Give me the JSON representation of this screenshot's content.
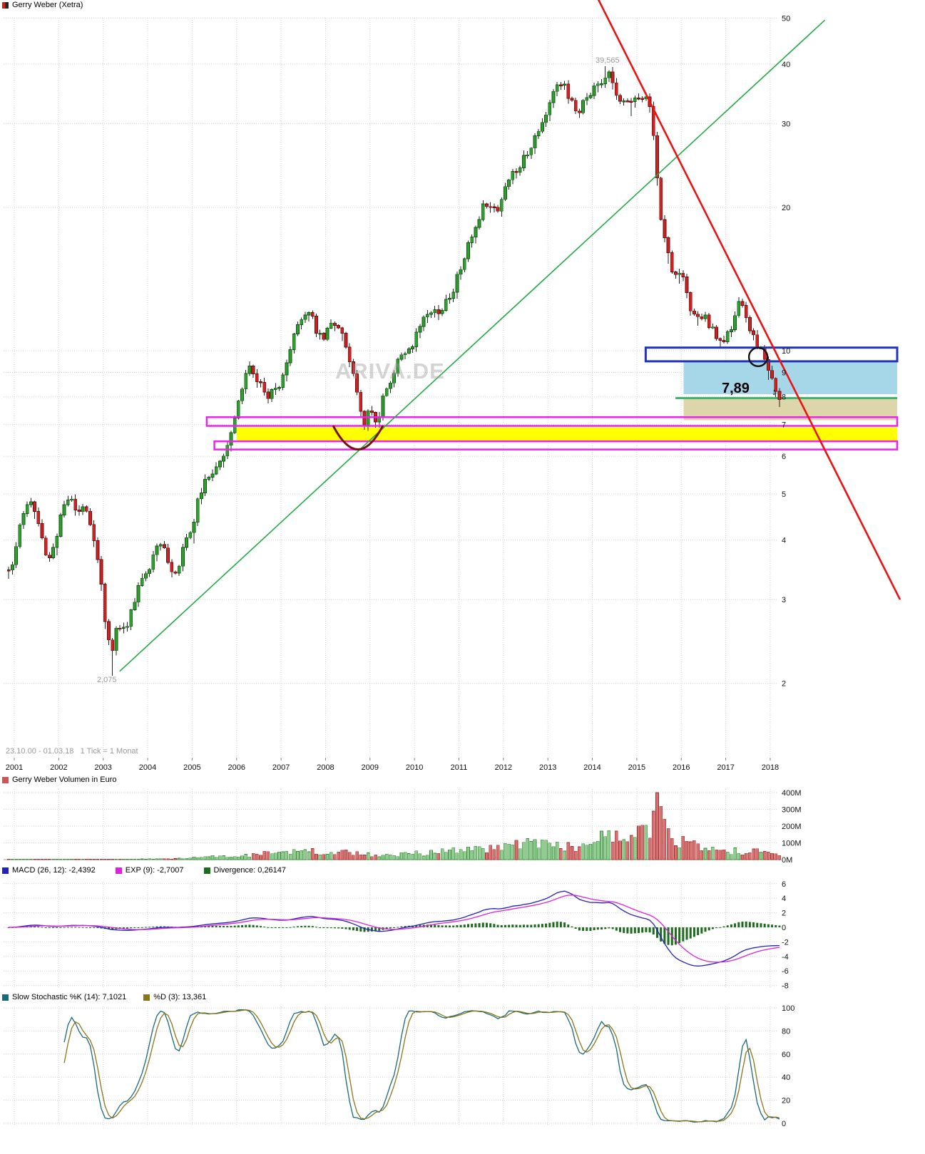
{
  "window": {
    "title_legend": "Gerry Weber (Xetra)"
  },
  "status_bar": {
    "period_label": "23.10.00 - 01.03.18",
    "tick_label": "1 Tick = 1 Monat"
  },
  "watermark": "ARIVA.DE",
  "chart_data": {
    "type": "candlestick",
    "title": "Gerry Weber (Xetra)",
    "scale": "log",
    "seed": 11,
    "x_start": 2000.875,
    "x_end": 2018.17,
    "x_tick_labels": [
      "2001",
      "2002",
      "2003",
      "2004",
      "2005",
      "2006",
      "2007",
      "2008",
      "2009",
      "2010",
      "2011",
      "2012",
      "2013",
      "2014",
      "2015",
      "2016",
      "2017",
      "2018"
    ],
    "grid_color": "#d2d2d2",
    "price_panel": {
      "y_ticks": [
        50,
        40,
        30,
        20,
        10,
        9,
        8,
        7,
        6,
        5,
        4,
        3,
        2
      ],
      "candle_colors": {
        "up": "#2f9e2f",
        "up_border": "#0f5a0f",
        "down": "#cc2222",
        "down_border": "#6e0e0e",
        "wick": "#222222"
      },
      "monthly_close_anchors": [
        [
          2000.87,
          3.45
        ],
        [
          2001.0,
          3.7
        ],
        [
          2001.17,
          4.5
        ],
        [
          2001.33,
          4.8
        ],
        [
          2001.5,
          4.6
        ],
        [
          2001.62,
          4.05
        ],
        [
          2001.75,
          3.5
        ],
        [
          2001.92,
          4.0
        ],
        [
          2002.08,
          4.7
        ],
        [
          2002.25,
          4.95
        ],
        [
          2002.42,
          4.55
        ],
        [
          2002.58,
          4.8
        ],
        [
          2002.75,
          4.15
        ],
        [
          2002.92,
          3.45
        ],
        [
          2003.08,
          2.55
        ],
        [
          2003.17,
          2.3
        ],
        [
          2003.33,
          2.7
        ],
        [
          2003.5,
          2.55
        ],
        [
          2003.67,
          2.95
        ],
        [
          2003.83,
          3.2
        ],
        [
          2004.0,
          3.45
        ],
        [
          2004.17,
          3.85
        ],
        [
          2004.33,
          3.95
        ],
        [
          2004.5,
          3.55
        ],
        [
          2004.62,
          3.35
        ],
        [
          2004.83,
          3.9
        ],
        [
          2005.0,
          4.3
        ],
        [
          2005.17,
          5.0
        ],
        [
          2005.33,
          5.35
        ],
        [
          2005.5,
          5.7
        ],
        [
          2005.67,
          6.0
        ],
        [
          2005.83,
          6.45
        ],
        [
          2006.0,
          7.5
        ],
        [
          2006.17,
          8.8
        ],
        [
          2006.33,
          9.3
        ],
        [
          2006.5,
          8.6
        ],
        [
          2006.67,
          7.9
        ],
        [
          2006.83,
          8.3
        ],
        [
          2007.0,
          8.6
        ],
        [
          2007.17,
          9.6
        ],
        [
          2007.33,
          11.0
        ],
        [
          2007.5,
          12.0
        ],
        [
          2007.62,
          12.3
        ],
        [
          2007.75,
          11.3
        ],
        [
          2007.92,
          10.6
        ],
        [
          2008.08,
          11.1
        ],
        [
          2008.25,
          11.7
        ],
        [
          2008.42,
          10.6
        ],
        [
          2008.58,
          9.2
        ],
        [
          2008.75,
          7.8
        ],
        [
          2008.87,
          6.9
        ],
        [
          2009.0,
          7.7
        ],
        [
          2009.17,
          7.0
        ],
        [
          2009.33,
          8.2
        ],
        [
          2009.5,
          8.9
        ],
        [
          2009.67,
          9.6
        ],
        [
          2009.83,
          10.1
        ],
        [
          2010.0,
          10.5
        ],
        [
          2010.17,
          11.4
        ],
        [
          2010.33,
          12.4
        ],
        [
          2010.5,
          12.0
        ],
        [
          2010.67,
          12.5
        ],
        [
          2010.83,
          13.1
        ],
        [
          2011.0,
          14.6
        ],
        [
          2011.17,
          16.2
        ],
        [
          2011.33,
          17.8
        ],
        [
          2011.5,
          19.8
        ],
        [
          2011.67,
          20.8
        ],
        [
          2011.83,
          19.6
        ],
        [
          2012.0,
          21.3
        ],
        [
          2012.17,
          23.2
        ],
        [
          2012.33,
          24.3
        ],
        [
          2012.5,
          25.8
        ],
        [
          2012.67,
          27.6
        ],
        [
          2012.83,
          30.0
        ],
        [
          2013.0,
          32.5
        ],
        [
          2013.17,
          35.5
        ],
        [
          2013.33,
          36.8
        ],
        [
          2013.5,
          34.0
        ],
        [
          2013.67,
          31.8
        ],
        [
          2013.83,
          33.5
        ],
        [
          2014.0,
          35.0
        ],
        [
          2014.17,
          36.5
        ],
        [
          2014.33,
          38.4
        ],
        [
          2014.42,
          37.0
        ],
        [
          2014.58,
          34.5
        ],
        [
          2014.75,
          32.8
        ],
        [
          2014.92,
          34.3
        ],
        [
          2015.08,
          33.3
        ],
        [
          2015.25,
          34.3
        ],
        [
          2015.42,
          27.0
        ],
        [
          2015.5,
          19.8
        ],
        [
          2015.67,
          16.8
        ],
        [
          2015.83,
          14.2
        ],
        [
          2016.0,
          14.6
        ],
        [
          2016.17,
          12.6
        ],
        [
          2016.33,
          11.4
        ],
        [
          2016.5,
          12.1
        ],
        [
          2016.67,
          11.2
        ],
        [
          2016.83,
          10.7
        ],
        [
          2017.0,
          10.6
        ],
        [
          2017.17,
          11.1
        ],
        [
          2017.3,
          12.9
        ],
        [
          2017.42,
          12.0
        ],
        [
          2017.58,
          11.0
        ],
        [
          2017.75,
          10.1
        ],
        [
          2017.92,
          9.4
        ],
        [
          2018.08,
          8.4
        ],
        [
          2018.17,
          7.89
        ]
      ],
      "high_annotation": {
        "label": "39,565",
        "t": 2014.33,
        "price": 39.565
      },
      "low_annotation": {
        "label": "2,075",
        "t": 2003.17,
        "price": 2.075
      },
      "last_price": {
        "label": "7,89",
        "value": 7.89
      },
      "overlays": {
        "blue_resistance_box": {
          "t_from": 2015.2,
          "price_from": 9.5,
          "price_to": 10.15,
          "color": "#2233bb"
        },
        "cyan_zone": {
          "t_from": 2016.05,
          "price_from": 8.1,
          "price_to": 9.5,
          "color": "#a6d7e8"
        },
        "green_support_line": {
          "t_from": 2015.87,
          "price": 7.95,
          "color": "#3db56b"
        },
        "tan_zone": {
          "t_from": 2016.05,
          "price_from": 7.15,
          "price_to": 7.95,
          "color": "#ddd6ab"
        },
        "yellow_zone": {
          "t_from": 2006.0,
          "price_from": 6.45,
          "price_to": 6.9,
          "color": "#ffff00"
        },
        "magenta_box_upper": {
          "t_from": 2005.33,
          "price_from": 6.95,
          "price_to": 7.25,
          "color": "#ee22ee"
        },
        "magenta_box_lower": {
          "t_from": 2005.5,
          "price_from": 6.2,
          "price_to": 6.45,
          "color": "#ee22ee"
        },
        "red_downtrend_line": {
          "from": {
            "t": 2014.08,
            "price": 56
          },
          "to": {
            "t": 2020.92,
            "price": 3.0
          },
          "color": "#ee1111"
        },
        "green_uptrend_line": {
          "from": {
            "t": 2003.37,
            "price": 2.12
          },
          "to": {
            "t": 2019.23,
            "price": 49.5
          },
          "color": "#22aa44"
        },
        "circle_annotation": {
          "t": 2017.73,
          "price": 9.7,
          "color": "#111111"
        },
        "red_arc_annotation": {
          "t_from": 2008.18,
          "t_to": 2009.28,
          "price_edges": 6.93,
          "price_bottom": 5.55,
          "color": "#7a1111"
        }
      }
    },
    "volume_panel": {
      "legend": "Gerry Weber Volumen in Euro",
      "legend_color": "#cc5555",
      "y_tick_labels": [
        "400M",
        "300M",
        "200M",
        "100M",
        "0M"
      ],
      "y_tick_values": [
        400,
        300,
        200,
        100,
        0
      ],
      "bar_colors": {
        "up": "#8fce8f",
        "up_border": "#3a8a3a",
        "down": "#d97070",
        "down_border": "#a03030"
      },
      "anchors_millions": [
        [
          2000.9,
          1.5
        ],
        [
          2002,
          2.5
        ],
        [
          2003,
          2
        ],
        [
          2004,
          4
        ],
        [
          2004.8,
          6
        ],
        [
          2005.2,
          16
        ],
        [
          2005.8,
          22
        ],
        [
          2006.3,
          30
        ],
        [
          2007,
          42
        ],
        [
          2007.6,
          50
        ],
        [
          2008.2,
          38
        ],
        [
          2008.8,
          45
        ],
        [
          2009.2,
          20
        ],
        [
          2010,
          35
        ],
        [
          2010.8,
          48
        ],
        [
          2011.4,
          60
        ],
        [
          2012,
          75
        ],
        [
          2012.4,
          120
        ],
        [
          2012.8,
          85
        ],
        [
          2013.2,
          95
        ],
        [
          2013.6,
          75
        ],
        [
          2014,
          105
        ],
        [
          2014.4,
          140
        ],
        [
          2014.8,
          95
        ],
        [
          2015.1,
          150
        ],
        [
          2015.3,
          200
        ],
        [
          2015.42,
          400
        ],
        [
          2015.58,
          220
        ],
        [
          2015.8,
          140
        ],
        [
          2016.1,
          100
        ],
        [
          2016.5,
          65
        ],
        [
          2016.9,
          45
        ],
        [
          2017.2,
          50
        ],
        [
          2017.5,
          40
        ],
        [
          2017.8,
          55
        ],
        [
          2018.1,
          25
        ]
      ],
      "spike": {
        "t": 2015.42,
        "value_millions": 400
      }
    },
    "macd_panel": {
      "legend_items": [
        {
          "label": "MACD (26, 12): -2,4392",
          "color": "#2222bb"
        },
        {
          "label": "EXP (9): -2,7007",
          "color": "#dd22dd"
        },
        {
          "label": "Divergence: 0,26147",
          "color": "#1d6b1d"
        }
      ],
      "params": {
        "slow": 26,
        "fast": 12,
        "signal": 9
      },
      "y_ticks": [
        6,
        4,
        2,
        0,
        -2,
        -4,
        -6,
        -8
      ]
    },
    "stochastic_panel": {
      "legend_items": [
        {
          "label": "Slow Stochastic %K (14): 7,1021",
          "color": "#186a78"
        },
        {
          "label": "%D (3): 13,361",
          "color": "#8a7618"
        }
      ],
      "params": {
        "k": 14,
        "d": 3
      },
      "y_ticks": [
        100,
        80,
        60,
        40,
        20,
        0
      ]
    }
  }
}
